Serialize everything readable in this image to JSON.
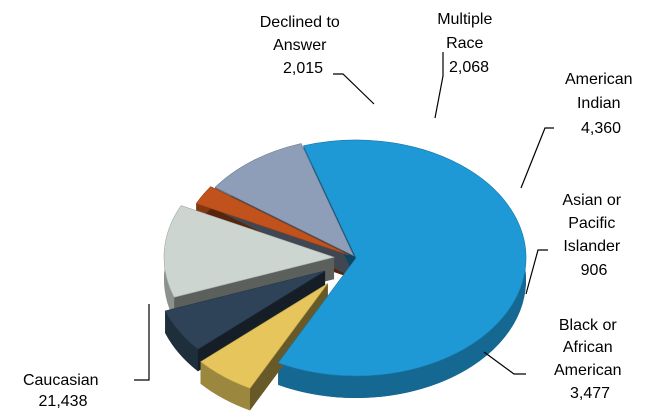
{
  "chart_data": {
    "type": "pie",
    "title": "",
    "slices": [
      {
        "label": "Caucasian",
        "label_lines": [
          "Caucasian",
          "21,438"
        ],
        "value": 21438,
        "color": "#1f99d6"
      },
      {
        "label": "Declined to Answer",
        "label_lines": [
          "Declined to",
          "Answer",
          "2,015"
        ],
        "value": 2015,
        "color": "#e6c65c"
      },
      {
        "label": "Multiple Race",
        "label_lines": [
          "Multiple",
          "Race",
          "2,068"
        ],
        "value": 2068,
        "color": "#2e4357"
      },
      {
        "label": "American Indian",
        "label_lines": [
          "American",
          "Indian",
          "4,360"
        ],
        "value": 4360,
        "color": "#ccd5cf"
      },
      {
        "label": "Asian or Pacific Islander",
        "label_lines": [
          "Asian or",
          "Pacific",
          "Islander",
          "906"
        ],
        "value": 906,
        "color": "#c2521b"
      },
      {
        "label": "Black or African American",
        "label_lines": [
          "Black or",
          "African",
          "American",
          "3,477"
        ],
        "value": 3477,
        "color": "#8e9eb8"
      }
    ]
  }
}
